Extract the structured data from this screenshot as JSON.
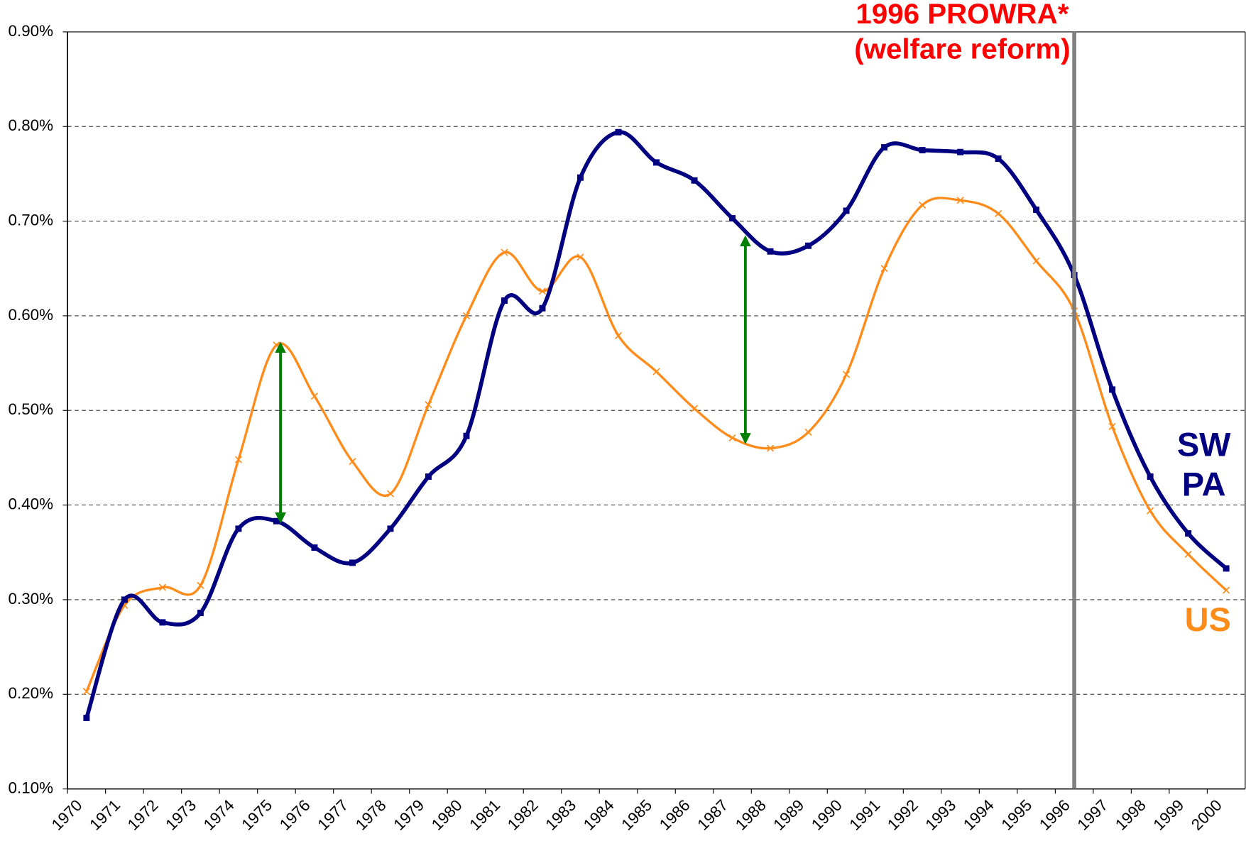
{
  "chart_data": {
    "type": "line",
    "annotations": [
      "1996 PROWRA*",
      "(welfare reform)"
    ],
    "marker_line": "1996",
    "categories": [
      "1970",
      "1971",
      "1972",
      "1973",
      "1974",
      "1975",
      "1976",
      "1977",
      "1978",
      "1979",
      "1980",
      "1981",
      "1982",
      "1983",
      "1984",
      "1985",
      "1986",
      "1987",
      "1988",
      "1989",
      "1990",
      "1991",
      "1992",
      "1993",
      "1994",
      "1995",
      "1996",
      "1997",
      "1998",
      "1999",
      "2000"
    ],
    "series": [
      {
        "name": "SW PA",
        "color": "#000080",
        "marker": "square",
        "values": [
          0.175,
          0.3,
          0.276,
          0.286,
          0.375,
          0.383,
          0.355,
          0.339,
          0.375,
          0.43,
          0.473,
          0.616,
          0.608,
          0.746,
          0.794,
          0.762,
          0.743,
          0.703,
          0.668,
          0.674,
          0.711,
          0.778,
          0.775,
          0.773,
          0.766,
          0.712,
          0.643,
          0.522,
          0.43,
          0.37,
          0.333
        ]
      },
      {
        "name": "US",
        "color": "#ff8c1a",
        "marker": "x",
        "values": [
          0.203,
          0.294,
          0.313,
          0.315,
          0.448,
          0.569,
          0.515,
          0.446,
          0.412,
          0.506,
          0.6,
          0.667,
          0.626,
          0.662,
          0.579,
          0.541,
          0.502,
          0.471,
          0.46,
          0.477,
          0.538,
          0.65,
          0.717,
          0.722,
          0.708,
          0.658,
          0.605,
          0.483,
          0.394,
          0.348,
          0.31
        ]
      }
    ],
    "ylim": [
      0.1,
      0.9
    ],
    "yticks": [
      {
        "value": 0.1,
        "label": "0.10%"
      },
      {
        "value": 0.2,
        "label": "0.20%"
      },
      {
        "value": 0.3,
        "label": "0.30%"
      },
      {
        "value": 0.4,
        "label": "0.40%"
      },
      {
        "value": 0.5,
        "label": "0.50%"
      },
      {
        "value": 0.6,
        "label": "0.60%"
      },
      {
        "value": 0.7,
        "label": "0.70%"
      },
      {
        "value": 0.8,
        "label": "0.80%"
      },
      {
        "value": 0.9,
        "label": "0.90%"
      }
    ],
    "grid": true
  }
}
